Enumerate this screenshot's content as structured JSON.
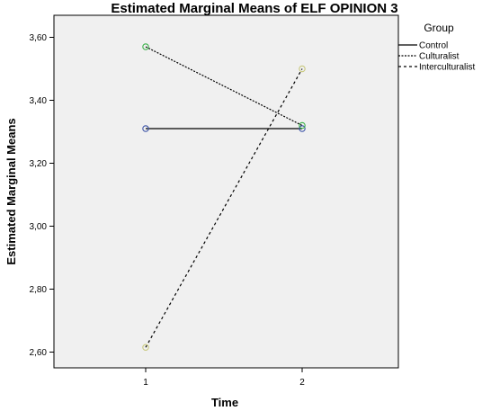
{
  "chart_data": {
    "type": "line",
    "title": "Estimated Marginal Means of ELF OPINION 3",
    "xlabel": "Time",
    "ylabel": "Estimated Marginal Means",
    "categories": [
      "1",
      "2"
    ],
    "ylim": [
      2.55,
      3.67
    ],
    "yticks": [
      "3,60",
      "3,40",
      "3,20",
      "3,00",
      "2,80",
      "2,60"
    ],
    "ytick_values": [
      3.6,
      3.4,
      3.2,
      3.0,
      2.8,
      2.6
    ],
    "legend_title": "Group",
    "legend_position": "right",
    "grid": false,
    "background_color": "#f0f0f0",
    "series": [
      {
        "name": "Control",
        "values": [
          3.31,
          3.31
        ],
        "dash": "solid",
        "marker_color": "#3f56a8"
      },
      {
        "name": "Culturalist",
        "values": [
          3.57,
          3.32
        ],
        "dash": "dotted",
        "marker_color": "#3cb14a"
      },
      {
        "name": "Interculturalist",
        "values": [
          2.615,
          3.5
        ],
        "dash": "dashed",
        "marker_color": "#c9c97e"
      }
    ]
  }
}
